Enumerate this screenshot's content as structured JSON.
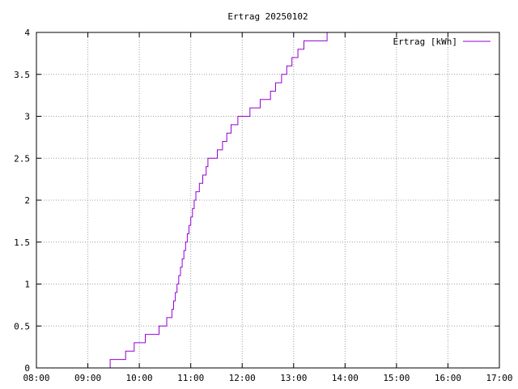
{
  "chart_data": {
    "type": "line",
    "title": "Ertrag 20250102",
    "xlabel": "",
    "ylabel": "",
    "xlim": [
      "08:00",
      "17:00"
    ],
    "ylim": [
      0,
      4
    ],
    "x_ticks": [
      "08:00",
      "09:00",
      "10:00",
      "11:00",
      "12:00",
      "13:00",
      "14:00",
      "15:00",
      "16:00",
      "17:00"
    ],
    "y_ticks": [
      "0",
      "0.5",
      "1",
      "1.5",
      "2",
      "2.5",
      "3",
      "3.5",
      "4"
    ],
    "grid": true,
    "legend_position": "top-right",
    "line_color": "#9400d3",
    "step": true,
    "series": [
      {
        "name": "Ertrag [kWh]",
        "x": [
          "09:18",
          "09:26",
          "09:34",
          "09:44",
          "09:54",
          "10:07",
          "10:23",
          "10:32",
          "10:38",
          "10:40",
          "10:42",
          "10:44",
          "10:46",
          "10:48",
          "10:50",
          "10:52",
          "10:54",
          "10:56",
          "10:58",
          "11:00",
          "11:02",
          "11:04",
          "11:06",
          "11:08",
          "11:10",
          "11:12",
          "11:14",
          "11:16",
          "11:18",
          "11:20",
          "11:26",
          "11:31",
          "11:37",
          "11:42",
          "11:47",
          "11:55",
          "12:03",
          "12:09",
          "12:15",
          "12:21",
          "12:27",
          "12:33",
          "12:39",
          "12:46",
          "12:52",
          "12:58",
          "13:05",
          "13:12",
          "13:24",
          "13:39",
          "14:03",
          "14:32",
          "15:03"
        ],
        "y": [
          0,
          0.1,
          0.1,
          0.2,
          0.3,
          0.4,
          0.5,
          0.6,
          0.7,
          0.8,
          0.9,
          1.0,
          1.1,
          1.2,
          1.3,
          1.4,
          1.5,
          1.6,
          1.7,
          1.8,
          1.9,
          2.0,
          2.1,
          2.1,
          2.2,
          2.2,
          2.3,
          2.3,
          2.4,
          2.5,
          2.5,
          2.6,
          2.7,
          2.8,
          2.9,
          3.0,
          3.0,
          3.1,
          3.1,
          3.2,
          3.2,
          3.3,
          3.4,
          3.5,
          3.6,
          3.7,
          3.8,
          3.9,
          3.9,
          4.0,
          4.0,
          4.0,
          4.0
        ]
      }
    ]
  }
}
